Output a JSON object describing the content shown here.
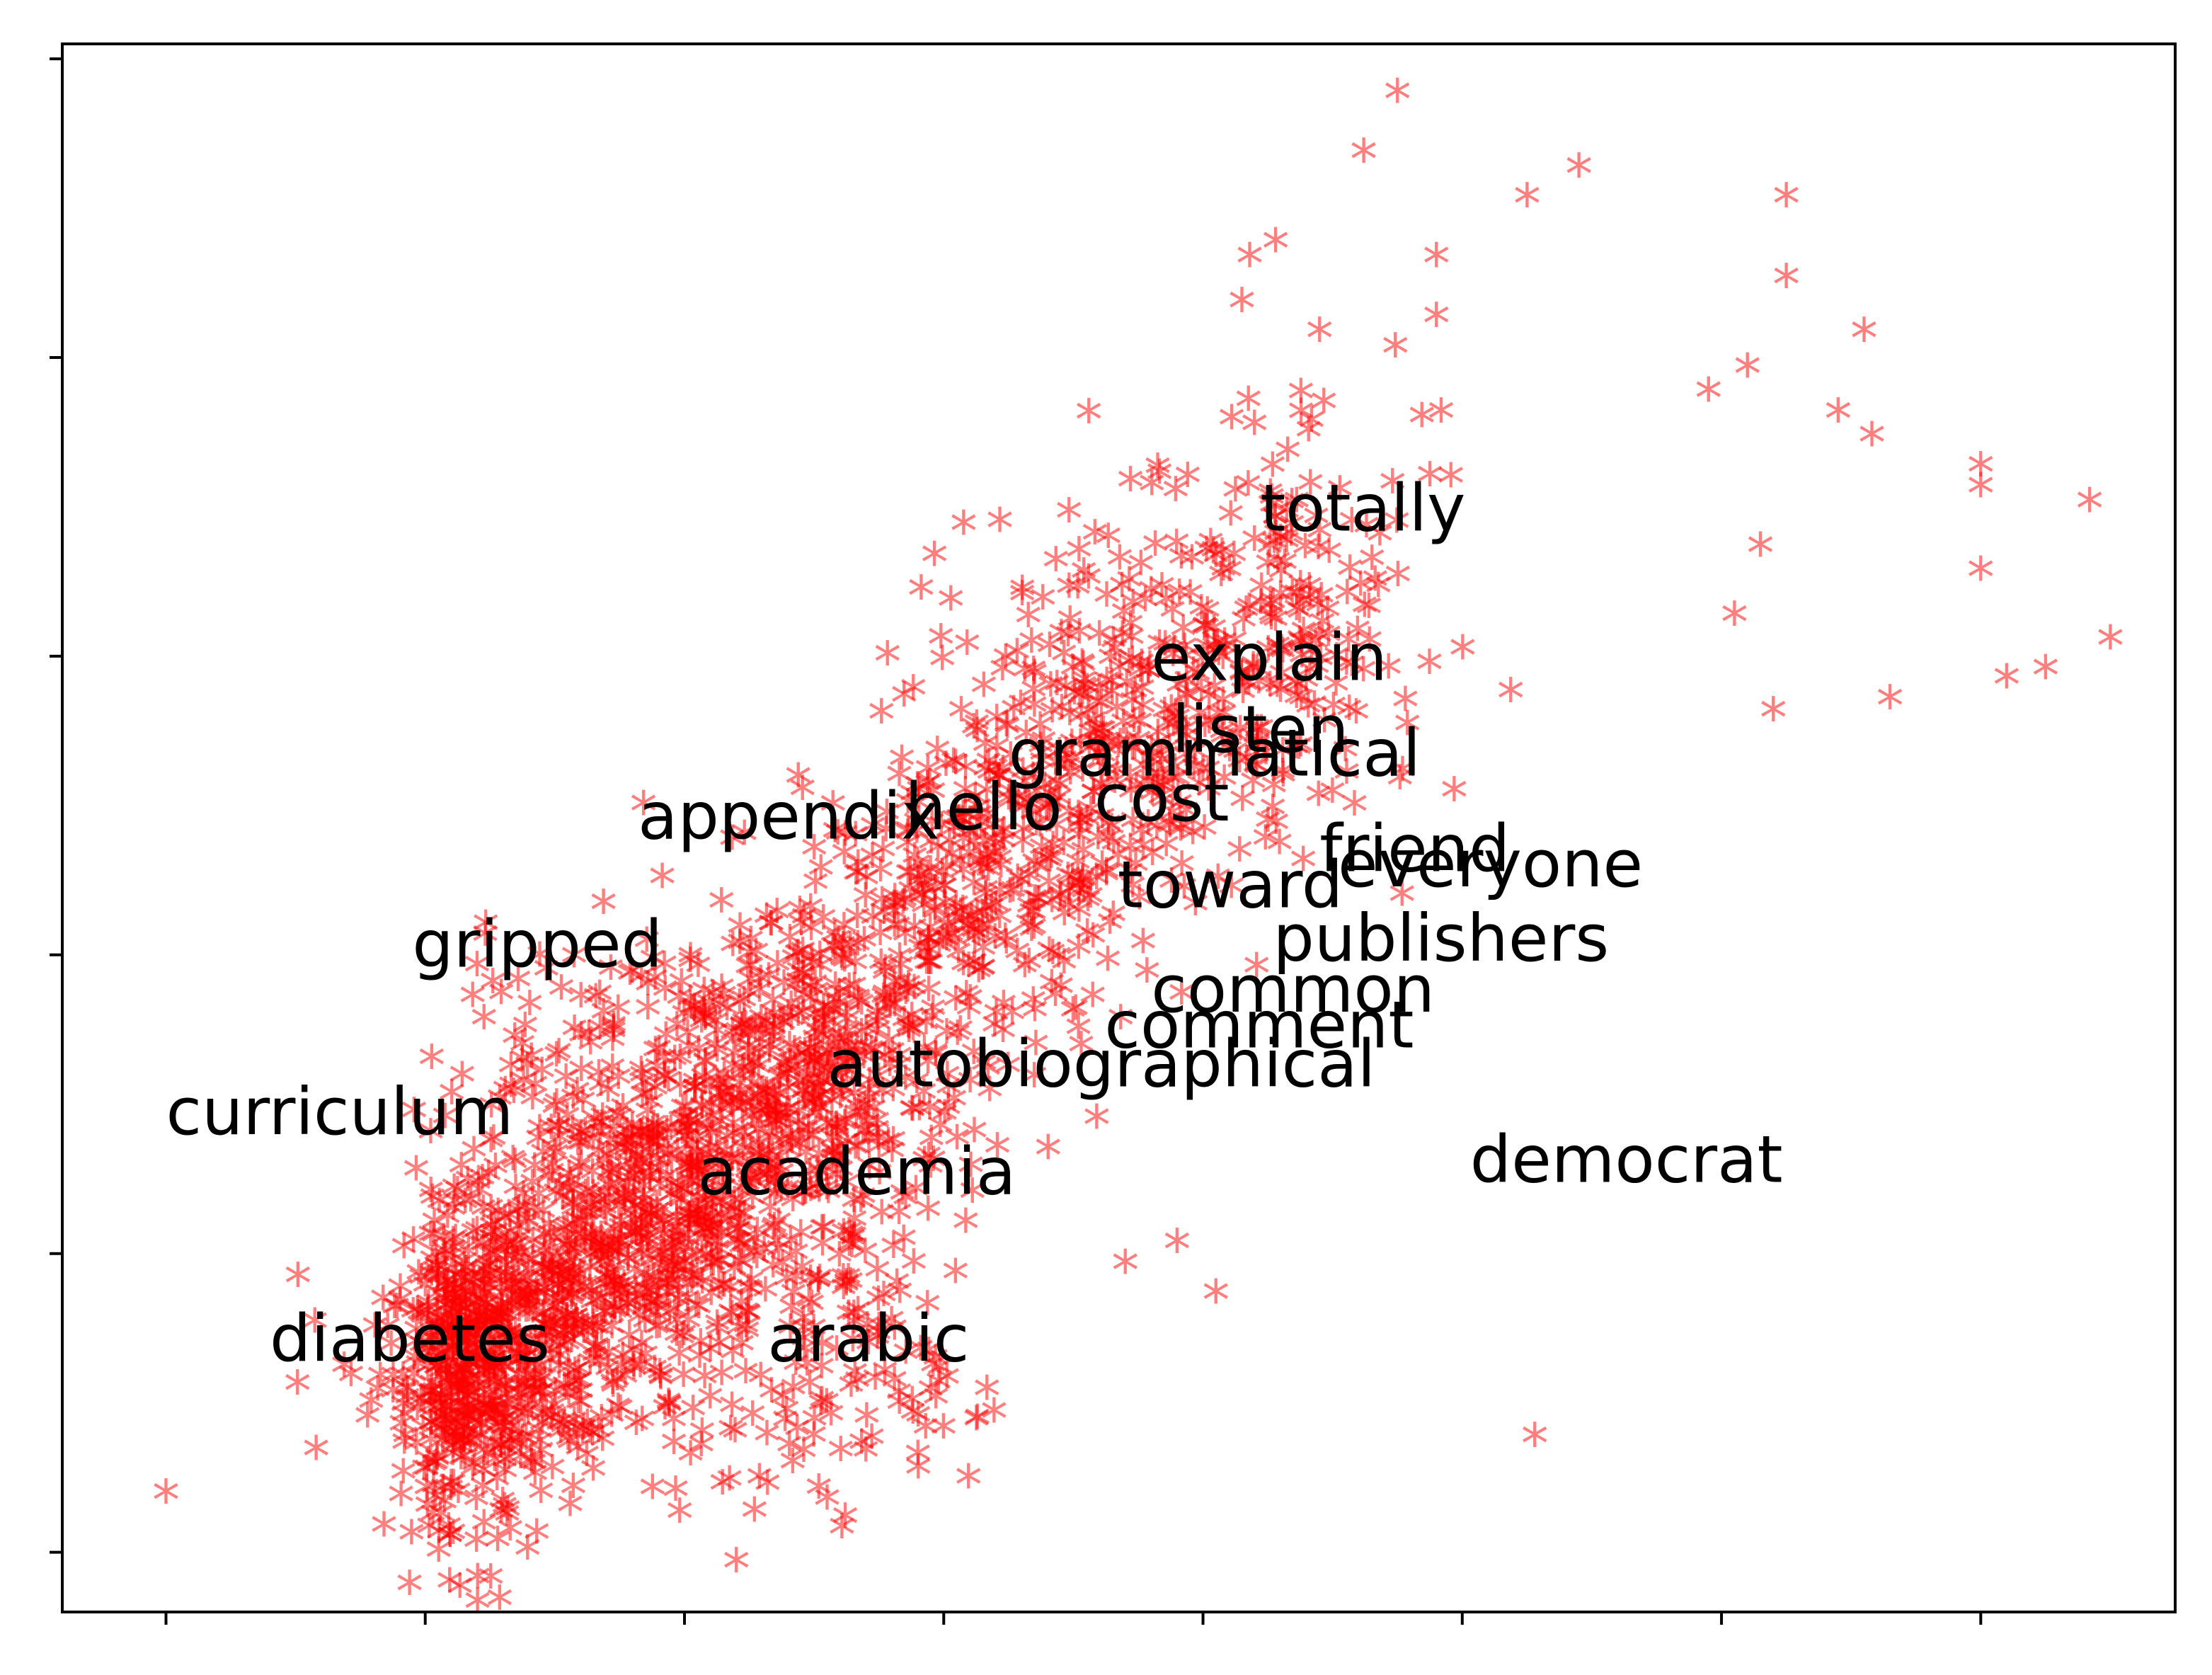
{
  "chart_data": {
    "type": "scatter",
    "title": "",
    "xlabel": "",
    "ylabel": "",
    "xlim": [
      0,
      8.15
    ],
    "ylim": [
      -0.2,
      5.05
    ],
    "xticks": [
      0.4,
      1.4,
      2.4,
      3.4,
      4.4,
      5.4,
      6.4,
      7.4
    ],
    "yticks": [
      0,
      1,
      2,
      3,
      4,
      5
    ],
    "tick_labels_visible": false,
    "grid": false,
    "legend": "none",
    "marker": "*",
    "marker_color": "#ff0000",
    "marker_alpha": 0.5,
    "label_color": "#000000",
    "cloud": {
      "description_point_count": 2600,
      "main_cluster_axis": [
        [
          1.5,
          0.5
        ],
        [
          4.8,
          3.3
        ]
      ],
      "dense_blob_center": [
        1.55,
        0.6
      ]
    },
    "outlier_points": [
      [
        0.4,
        0.18
      ],
      [
        5.15,
        4.87
      ],
      [
        5.02,
        4.67
      ],
      [
        5.85,
        4.62
      ],
      [
        5.65,
        4.52
      ],
      [
        6.65,
        4.52
      ],
      [
        4.68,
        4.37
      ],
      [
        4.58,
        4.32
      ],
      [
        5.3,
        4.32
      ],
      [
        4.55,
        4.17
      ],
      [
        5.3,
        4.12
      ],
      [
        6.65,
        4.25
      ],
      [
        6.95,
        4.07
      ],
      [
        4.85,
        4.07
      ],
      [
        6.35,
        3.87
      ],
      [
        6.5,
        3.95
      ],
      [
        6.85,
        3.8
      ],
      [
        6.98,
        3.72
      ],
      [
        7.4,
        3.55
      ],
      [
        7.4,
        3.62
      ],
      [
        4.12,
        3.57
      ],
      [
        7.82,
        3.5
      ],
      [
        7.4,
        3.27
      ],
      [
        7.9,
        3.04
      ],
      [
        6.55,
        3.35
      ],
      [
        6.45,
        3.12
      ],
      [
        7.65,
        2.94
      ],
      [
        7.5,
        2.91
      ],
      [
        7.05,
        2.84
      ],
      [
        6.6,
        2.8
      ],
      [
        5.68,
        0.37
      ],
      [
        3.53,
        0.43
      ],
      [
        3.3,
        0.31
      ],
      [
        2.72,
        0.21
      ],
      [
        2.95,
        0.16
      ],
      [
        2.86,
        0.32
      ],
      [
        2.78,
        0.5
      ],
      [
        2.67,
        0.12
      ],
      [
        2.6,
        -0.05
      ],
      [
        3.02,
        0.1
      ],
      [
        4.45,
        0.85
      ],
      [
        4.1,
        0.95
      ],
      [
        4.3,
        1.02
      ],
      [
        3.38,
        0.55
      ]
    ],
    "annotations": [
      {
        "text": "totally",
        "x": 4.62,
        "y": 3.42
      },
      {
        "text": "explain",
        "x": 4.2,
        "y": 2.92
      },
      {
        "text": "listen",
        "x": 4.28,
        "y": 2.68
      },
      {
        "text": "grammatical",
        "x": 3.65,
        "y": 2.6
      },
      {
        "text": "hello",
        "x": 3.25,
        "y": 2.42
      },
      {
        "text": "appendix",
        "x": 2.22,
        "y": 2.39
      },
      {
        "text": "cost",
        "x": 3.98,
        "y": 2.45
      },
      {
        "text": "friend",
        "x": 4.85,
        "y": 2.28
      },
      {
        "text": "everyone",
        "x": 4.92,
        "y": 2.23
      },
      {
        "text": "toward",
        "x": 4.07,
        "y": 2.16
      },
      {
        "text": "publishers",
        "x": 4.67,
        "y": 1.98
      },
      {
        "text": "gripped",
        "x": 1.35,
        "y": 1.96
      },
      {
        "text": "common",
        "x": 4.2,
        "y": 1.81
      },
      {
        "text": "comment",
        "x": 4.02,
        "y": 1.69
      },
      {
        "text": "autobiographical",
        "x": 2.95,
        "y": 1.56
      },
      {
        "text": "curriculum",
        "x": 0.4,
        "y": 1.4
      },
      {
        "text": "democrat",
        "x": 5.43,
        "y": 1.24
      },
      {
        "text": "academia",
        "x": 2.45,
        "y": 1.2
      },
      {
        "text": "diabetes",
        "x": 0.8,
        "y": 0.64
      },
      {
        "text": "arabic",
        "x": 2.72,
        "y": 0.64
      }
    ]
  }
}
